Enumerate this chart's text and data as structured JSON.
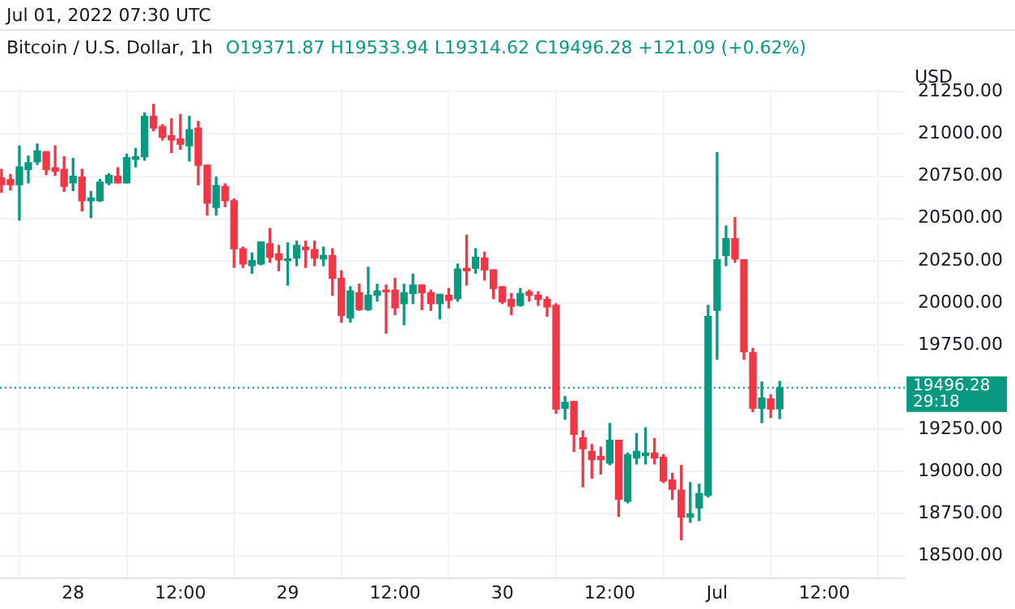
{
  "chart_data": {
    "type": "candlestick",
    "title": "Bitcoin / U.S. Dollar, 1h",
    "subtitle": "Jul 01, 2022 07:30 UTC",
    "ylabel": "USD",
    "annotations": [
      "O19371.87 H19533.94 L19314.62 C19496.28 +121.09 (+0.62%)",
      "29:18"
    ],
    "x": [
      "2022-06-27T16:00",
      "2022-06-27T17:00",
      "2022-06-27T18:00",
      "2022-06-27T19:00",
      "2022-06-27T20:00",
      "2022-06-27T21:00",
      "2022-06-27T22:00",
      "2022-06-27T23:00",
      "2022-06-28T00:00",
      "2022-06-28T01:00",
      "2022-06-28T02:00",
      "2022-06-28T03:00",
      "2022-06-28T04:00",
      "2022-06-28T05:00",
      "2022-06-28T06:00",
      "2022-06-28T07:00",
      "2022-06-28T08:00",
      "2022-06-28T09:00",
      "2022-06-28T10:00",
      "2022-06-28T11:00",
      "2022-06-28T12:00",
      "2022-06-28T13:00",
      "2022-06-28T14:00",
      "2022-06-28T15:00",
      "2022-06-28T16:00",
      "2022-06-28T17:00",
      "2022-06-28T18:00",
      "2022-06-28T19:00",
      "2022-06-28T20:00",
      "2022-06-28T21:00",
      "2022-06-28T22:00",
      "2022-06-28T23:00",
      "2022-06-29T00:00",
      "2022-06-29T01:00",
      "2022-06-29T02:00",
      "2022-06-29T03:00",
      "2022-06-29T04:00",
      "2022-06-29T05:00",
      "2022-06-29T06:00",
      "2022-06-29T07:00",
      "2022-06-29T08:00",
      "2022-06-29T09:00",
      "2022-06-29T10:00",
      "2022-06-29T11:00",
      "2022-06-29T12:00",
      "2022-06-29T13:00",
      "2022-06-29T14:00",
      "2022-06-29T15:00",
      "2022-06-29T16:00",
      "2022-06-29T17:00",
      "2022-06-29T18:00",
      "2022-06-29T19:00",
      "2022-06-29T20:00",
      "2022-06-29T21:00",
      "2022-06-29T22:00",
      "2022-06-29T23:00",
      "2022-06-30T00:00",
      "2022-06-30T01:00",
      "2022-06-30T02:00",
      "2022-06-30T03:00",
      "2022-06-30T04:00",
      "2022-06-30T05:00",
      "2022-06-30T06:00",
      "2022-06-30T07:00",
      "2022-06-30T08:00",
      "2022-06-30T09:00",
      "2022-06-30T10:00",
      "2022-06-30T11:00",
      "2022-06-30T12:00",
      "2022-06-30T13:00",
      "2022-06-30T14:00",
      "2022-06-30T15:00",
      "2022-06-30T16:00",
      "2022-06-30T17:00",
      "2022-06-30T18:00",
      "2022-06-30T19:00",
      "2022-06-30T20:00",
      "2022-06-30T21:00",
      "2022-06-30T22:00",
      "2022-06-30T23:00",
      "2022-07-01T00:00",
      "2022-07-01T01:00",
      "2022-07-01T02:00",
      "2022-07-01T03:00",
      "2022-07-01T04:00",
      "2022-07-01T05:00",
      "2022-07-01T06:00",
      "2022-07-01T07:00"
    ],
    "ohlc": [
      [
        20740,
        20790,
        20655,
        20700
      ],
      [
        20730,
        20760,
        20670,
        20700
      ],
      [
        20700,
        20930,
        20490,
        20805
      ],
      [
        20790,
        20870,
        20710,
        20830
      ],
      [
        20835,
        20940,
        20820,
        20900
      ],
      [
        20895,
        20895,
        20760,
        20790
      ],
      [
        20800,
        20930,
        20755,
        20780
      ],
      [
        20790,
        20865,
        20660,
        20690
      ],
      [
        20710,
        20855,
        20665,
        20750
      ],
      [
        20745,
        20790,
        20545,
        20605
      ],
      [
        20605,
        20660,
        20505,
        20620
      ],
      [
        20605,
        20730,
        20600,
        20715
      ],
      [
        20710,
        20765,
        20700,
        20755
      ],
      [
        20750,
        20800,
        20710,
        20710
      ],
      [
        20710,
        20880,
        20710,
        20860
      ],
      [
        20850,
        20915,
        20805,
        20865
      ],
      [
        20865,
        21125,
        20845,
        21105
      ],
      [
        21105,
        21175,
        21020,
        21035
      ],
      [
        21045,
        21055,
        20965,
        20980
      ],
      [
        20990,
        21090,
        20890,
        20965
      ],
      [
        20970,
        21115,
        20910,
        20940
      ],
      [
        20930,
        21105,
        20840,
        21025
      ],
      [
        21035,
        21075,
        20700,
        20815
      ],
      [
        20815,
        20815,
        20520,
        20590
      ],
      [
        20565,
        20745,
        20520,
        20695
      ],
      [
        20690,
        20705,
        20570,
        20605
      ],
      [
        20605,
        20615,
        20210,
        20320
      ],
      [
        20320,
        20330,
        20210,
        20230
      ],
      [
        20220,
        20295,
        20175,
        20250
      ],
      [
        20230,
        20360,
        20225,
        20360
      ],
      [
        20350,
        20440,
        20240,
        20270
      ],
      [
        20290,
        20340,
        20190,
        20255
      ],
      [
        20250,
        20355,
        20105,
        20260
      ],
      [
        20265,
        20365,
        20220,
        20340
      ],
      [
        20330,
        20365,
        20210,
        20315
      ],
      [
        20315,
        20365,
        20220,
        20265
      ],
      [
        20260,
        20330,
        20220,
        20280
      ],
      [
        20280,
        20320,
        20045,
        20145
      ],
      [
        20145,
        20190,
        19885,
        19925
      ],
      [
        19910,
        20095,
        19885,
        20070
      ],
      [
        20060,
        20110,
        19955,
        19960
      ],
      [
        19960,
        20210,
        19955,
        20045
      ],
      [
        20045,
        20110,
        20010,
        20070
      ],
      [
        20075,
        20105,
        19820,
        20065
      ],
      [
        20075,
        20145,
        19930,
        19970
      ],
      [
        19995,
        20110,
        19870,
        20060
      ],
      [
        20055,
        20170,
        19995,
        20105
      ],
      [
        20105,
        20105,
        19960,
        20060
      ],
      [
        20060,
        20075,
        19955,
        19995
      ],
      [
        19995,
        20050,
        19905,
        20050
      ],
      [
        20045,
        20085,
        19970,
        20015
      ],
      [
        20025,
        20230,
        20010,
        20200
      ],
      [
        20205,
        20400,
        20105,
        20190
      ],
      [
        20205,
        20320,
        20175,
        20270
      ],
      [
        20265,
        20300,
        20135,
        20195
      ],
      [
        20195,
        20195,
        20025,
        20085
      ],
      [
        20095,
        20095,
        19995,
        20005
      ],
      [
        20020,
        20055,
        19930,
        19980
      ],
      [
        19985,
        20085,
        19980,
        20055
      ],
      [
        20065,
        20075,
        20010,
        20045
      ],
      [
        20045,
        20065,
        19985,
        20020
      ],
      [
        20020,
        20035,
        19920,
        19975
      ],
      [
        19985,
        19995,
        19345,
        19370
      ],
      [
        19375,
        19445,
        19310,
        19410
      ],
      [
        19415,
        19415,
        19120,
        19220
      ],
      [
        19200,
        19240,
        18910,
        19135
      ],
      [
        19120,
        19160,
        18960,
        19070
      ],
      [
        19090,
        19145,
        18985,
        19070
      ],
      [
        19050,
        19285,
        19040,
        19185
      ],
      [
        19185,
        19185,
        18735,
        18835
      ],
      [
        18825,
        19110,
        18815,
        19100
      ],
      [
        19080,
        19225,
        19045,
        19120
      ],
      [
        19095,
        19260,
        19045,
        19110
      ],
      [
        19110,
        19195,
        19045,
        19080
      ],
      [
        19085,
        19100,
        18935,
        18945
      ],
      [
        18950,
        18990,
        18835,
        18895
      ],
      [
        18890,
        19035,
        18595,
        18730
      ],
      [
        18730,
        18935,
        18700,
        18750
      ],
      [
        18785,
        18925,
        18710,
        18870
      ],
      [
        18860,
        19985,
        18850,
        19920
      ],
      [
        19955,
        20890,
        19665,
        20255
      ],
      [
        20280,
        20455,
        20220,
        20380
      ],
      [
        20380,
        20505,
        20240,
        20260
      ],
      [
        20255,
        20255,
        19665,
        19710
      ],
      [
        19705,
        19730,
        19355,
        19375
      ],
      [
        19375,
        19530,
        19290,
        19435
      ],
      [
        19430,
        19455,
        19320,
        19370
      ],
      [
        19371.87,
        19533.94,
        19314.62,
        19496.28
      ]
    ],
    "colors": [
      "#f23645",
      "#f23645",
      "#089981",
      "#089981",
      "#089981",
      "#f23645",
      "#f23645",
      "#f23645",
      "#089981",
      "#f23645",
      "#089981",
      "#089981",
      "#089981",
      "#f23645",
      "#089981",
      "#089981",
      "#089981",
      "#f23645",
      "#f23645",
      "#f23645",
      "#f23645",
      "#089981",
      "#f23645",
      "#f23645",
      "#089981",
      "#f23645",
      "#f23645",
      "#f23645",
      "#089981",
      "#089981",
      "#f23645",
      "#f23645",
      "#089981",
      "#089981",
      "#f23645",
      "#f23645",
      "#089981",
      "#f23645",
      "#f23645",
      "#089981",
      "#f23645",
      "#089981",
      "#089981",
      "#f23645",
      "#f23645",
      "#089981",
      "#089981",
      "#f23645",
      "#f23645",
      "#089981",
      "#f23645",
      "#089981",
      "#f23645",
      "#089981",
      "#f23645",
      "#f23645",
      "#f23645",
      "#f23645",
      "#089981",
      "#f23645",
      "#f23645",
      "#f23645",
      "#f23645",
      "#089981",
      "#f23645",
      "#f23645",
      "#f23645",
      "#f23645",
      "#089981",
      "#f23645",
      "#089981",
      "#089981",
      "#089981",
      "#f23645",
      "#f23645",
      "#f23645",
      "#f23645",
      "#089981",
      "#089981",
      "#089981",
      "#089981",
      "#089981",
      "#f23645",
      "#f23645",
      "#f23645",
      "#089981",
      "#f23645",
      "#089981"
    ],
    "xlim": [
      "2022-06-27T15:50",
      "2022-07-01T21:00"
    ],
    "xticks": [
      {
        "value": "2022-06-28T00:00",
        "label": "28"
      },
      {
        "value": "2022-06-28T12:00",
        "label": "12:00"
      },
      {
        "value": "2022-06-29T00:00",
        "label": "29"
      },
      {
        "value": "2022-06-29T12:00",
        "label": "12:00"
      },
      {
        "value": "2022-06-30T00:00",
        "label": "30"
      },
      {
        "value": "2022-06-30T12:00",
        "label": "12:00"
      },
      {
        "value": "2022-07-01T00:00",
        "label": "Jul"
      },
      {
        "value": "2022-07-01T12:00",
        "label": "12:00"
      }
    ],
    "ylim": [
      18370,
      21270
    ],
    "yticks": [
      {
        "value": 18500,
        "label": "18500.00"
      },
      {
        "value": 18750,
        "label": "18750.00"
      },
      {
        "value": 19000,
        "label": "19000.00"
      },
      {
        "value": 19250,
        "label": "19250.00"
      },
      {
        "value": 19500,
        "label": null
      },
      {
        "value": 19750,
        "label": "19750.00"
      },
      {
        "value": 20000,
        "label": "20000.00"
      },
      {
        "value": 20250,
        "label": "20250.00"
      },
      {
        "value": 20500,
        "label": "20500.00"
      },
      {
        "value": 20750,
        "label": "20750.00"
      },
      {
        "value": 21000,
        "label": "21000.00"
      },
      {
        "value": 21250,
        "label": "21250.00"
      }
    ],
    "ref_lines": [
      {
        "axis": "y",
        "value": 19496.28,
        "label": "19496.28",
        "color": "#089981",
        "line_style": "dotted"
      }
    ],
    "grid": true,
    "legend": false
  }
}
